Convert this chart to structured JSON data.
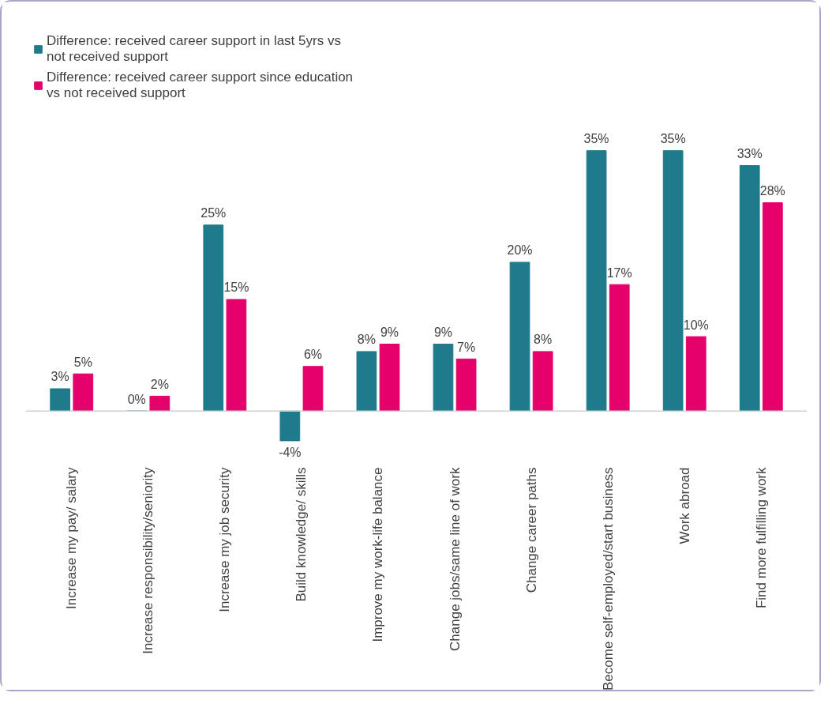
{
  "chart_data": {
    "type": "bar",
    "categories": [
      "Increase my pay/ salary",
      "Increase responsibility/seniority",
      "Increase my job security",
      "Build knowledge/ skills",
      "Improve my work-life balance",
      "Change jobs/same line of work",
      "Change career paths",
      "Become self-employed/start business",
      "Work abroad",
      "Find more fulfilling work"
    ],
    "series": [
      {
        "name": "Difference: received career support in last 5yrs vs not received support",
        "color": "#1f7b8b",
        "values": [
          3,
          0,
          25,
          -4,
          8,
          9,
          20,
          35,
          35,
          33
        ],
        "value_labels": [
          "3%",
          "0%",
          "25%",
          "-4%",
          "8%",
          "9%",
          "20%",
          "35%",
          "35%",
          "33%"
        ]
      },
      {
        "name": "Difference: received career support since education vs not received support",
        "color": "#e5006b",
        "values": [
          5,
          2,
          15,
          6,
          9,
          7,
          8,
          17,
          10,
          28
        ],
        "value_labels": [
          "5%",
          "2%",
          "15%",
          "6%",
          "9%",
          "7%",
          "8%",
          "17%",
          "10%",
          "28%"
        ]
      }
    ],
    "legend": "top left",
    "grid": false
  }
}
